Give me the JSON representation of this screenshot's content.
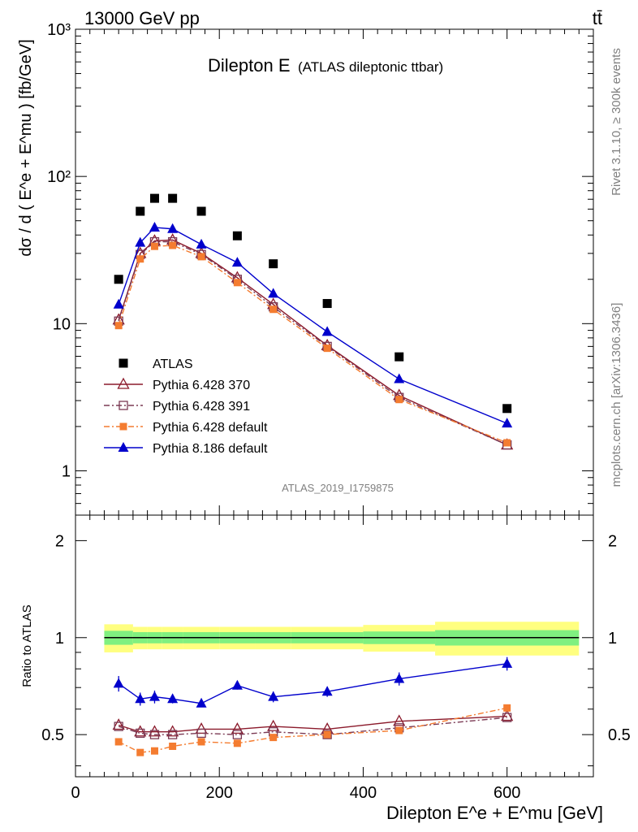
{
  "header": {
    "energy": "13000 GeV pp",
    "process": "tt̄"
  },
  "side_labels": {
    "rivet": "Rivet 3.1.10, ≥ 300k events",
    "site": "mcplots.cern.ch [arXiv:1306.3436]"
  },
  "colors": {
    "atlas": "#000000",
    "p370": "#8b1a2b",
    "p391": "#7b3a54",
    "p6def": "#f47c30",
    "p8": "#0000cc",
    "band_inner": "#80f080",
    "band_outer": "#ffff80"
  },
  "chart_data": {
    "type": "line",
    "title": "Dilepton E",
    "subtitle": "(ATLAS dileptonic ttbar)",
    "analysis_id": "ATLAS_2019_I1759875",
    "xlabel": "Dilepton E^e + E^mu [GeV]",
    "ylabel": "dσ / d ( E^e + E^mu ) [fb/GeV]",
    "ratio_ylabel": "Ratio to ATLAS",
    "xlim": [
      0,
      720
    ],
    "ylim": [
      0.5,
      1000
    ],
    "ratio_ylim": [
      0.37,
      2.4
    ],
    "yscale": "log",
    "x_ticks": [
      "0",
      "200",
      "400",
      "600"
    ],
    "y_ticks": [
      "1",
      "10",
      "10²",
      "10³"
    ],
    "ratio_ticks": [
      "0.5",
      "1",
      "2"
    ],
    "x": [
      60,
      90,
      110,
      135,
      175,
      225,
      275,
      350,
      450,
      600
    ],
    "series": [
      {
        "name": "ATLAS",
        "key": "atlas",
        "marker": "square",
        "values": [
          20,
          58,
          71,
          71,
          58,
          39.5,
          25.5,
          13.7,
          5.95,
          2.65
        ]
      },
      {
        "name": "Pythia 6.428 370",
        "key": "p370",
        "marker": "open-triangle",
        "values": [
          10.6,
          30,
          36.5,
          37,
          30,
          20.5,
          13.5,
          7.1,
          3.25,
          1.5
        ]
      },
      {
        "name": "Pythia 6.428 391",
        "key": "p391",
        "marker": "open-square",
        "values": [
          10.4,
          29.5,
          36,
          36,
          29.5,
          20,
          13,
          7.0,
          3.15,
          1.5
        ]
      },
      {
        "name": "Pythia 6.428 default",
        "key": "p6def",
        "marker": "filled-square",
        "values": [
          9.7,
          27.5,
          33.5,
          34,
          28.5,
          19,
          12.5,
          6.8,
          3.05,
          1.55
        ]
      },
      {
        "name": "Pythia 8.186 default",
        "key": "p8",
        "marker": "filled-triangle",
        "values": [
          13.5,
          35.5,
          45,
          44,
          34.5,
          26,
          16,
          8.8,
          4.2,
          2.1
        ]
      }
    ],
    "ratio_series": [
      {
        "key": "p370",
        "values": [
          0.535,
          0.51,
          0.51,
          0.51,
          0.52,
          0.52,
          0.53,
          0.52,
          0.55,
          0.57
        ]
      },
      {
        "key": "p391",
        "values": [
          0.53,
          0.505,
          0.5,
          0.5,
          0.505,
          0.5,
          0.51,
          0.5,
          0.525,
          0.565
        ]
      },
      {
        "key": "p6def",
        "values": [
          0.475,
          0.44,
          0.445,
          0.46,
          0.475,
          0.47,
          0.49,
          0.5,
          0.515,
          0.605
        ]
      },
      {
        "key": "p8",
        "values": [
          0.72,
          0.645,
          0.655,
          0.645,
          0.625,
          0.71,
          0.655,
          0.68,
          0.745,
          0.83
        ],
        "errors": [
          0.04,
          0.03,
          0.03,
          0.02,
          0.015,
          0.02,
          0.025,
          0.025,
          0.035,
          0.04
        ]
      }
    ],
    "band": {
      "edges": [
        40,
        80,
        100,
        120,
        150,
        200,
        250,
        300,
        400,
        500,
        700
      ],
      "inner": [
        0.05,
        0.04,
        0.04,
        0.04,
        0.04,
        0.04,
        0.04,
        0.04,
        0.045,
        0.055
      ],
      "outer": [
        0.1,
        0.08,
        0.08,
        0.08,
        0.08,
        0.08,
        0.08,
        0.08,
        0.095,
        0.12
      ]
    }
  }
}
